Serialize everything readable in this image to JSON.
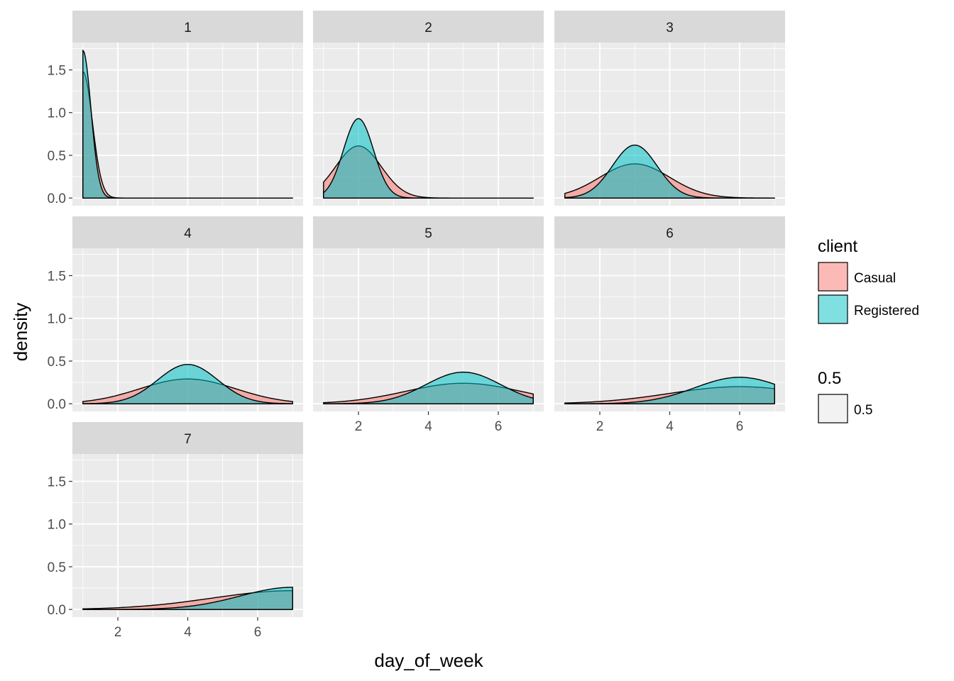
{
  "chart_data": {
    "type": "area",
    "subtype": "density-faceted",
    "xlabel": "day_of_week",
    "ylabel": "density",
    "xlim": [
      0.7,
      7.3
    ],
    "ylim": [
      -0.09,
      1.82
    ],
    "x_ticks": [
      2,
      4,
      6
    ],
    "y_ticks": [
      0.0,
      0.5,
      1.0,
      1.5
    ],
    "y_tick_labels": [
      "0.0",
      "0.5",
      "1.0",
      "1.5"
    ],
    "x_range": [
      1,
      7
    ],
    "grid": true,
    "legend_position": "right",
    "legend": {
      "fill_title": "client",
      "fill_entries": [
        {
          "name": "Casual",
          "color": "#F8766D"
        },
        {
          "name": "Registered",
          "color": "#00BFC4"
        }
      ],
      "alpha_title": "0.5",
      "alpha_entries": [
        {
          "name": "0.5"
        }
      ]
    },
    "colors": {
      "panel_bg": "#EBEBEB",
      "grid": "#FFFFFF",
      "strip_bg": "#D9D9D9",
      "casual": "#F8766D",
      "registered": "#00BFC4",
      "outline": "#000000"
    },
    "facets": [
      {
        "label": "1",
        "series": [
          {
            "name": "Casual",
            "mean": 1.0,
            "sd": 0.27,
            "peak": 1.48
          },
          {
            "name": "Registered",
            "mean": 1.0,
            "sd": 0.23,
            "peak": 1.73
          }
        ]
      },
      {
        "label": "2",
        "series": [
          {
            "name": "Casual",
            "mean": 2.0,
            "sd": 0.65,
            "peak": 0.61
          },
          {
            "name": "Registered",
            "mean": 2.0,
            "sd": 0.43,
            "peak": 0.93
          }
        ]
      },
      {
        "label": "3",
        "series": [
          {
            "name": "Casual",
            "mean": 3.0,
            "sd": 1.0,
            "peak": 0.4
          },
          {
            "name": "Registered",
            "mean": 3.0,
            "sd": 0.64,
            "peak": 0.62
          }
        ]
      },
      {
        "label": "4",
        "series": [
          {
            "name": "Casual",
            "mean": 4.0,
            "sd": 1.37,
            "peak": 0.29
          },
          {
            "name": "Registered",
            "mean": 4.0,
            "sd": 0.86,
            "peak": 0.46
          }
        ]
      },
      {
        "label": "5",
        "series": [
          {
            "name": "Casual",
            "mean": 5.0,
            "sd": 1.65,
            "peak": 0.24
          },
          {
            "name": "Registered",
            "mean": 5.0,
            "sd": 1.07,
            "peak": 0.37
          }
        ]
      },
      {
        "label": "6",
        "series": [
          {
            "name": "Casual",
            "mean": 6.0,
            "sd": 2.0,
            "peak": 0.2
          },
          {
            "name": "Registered",
            "mean": 6.0,
            "sd": 1.28,
            "peak": 0.31
          }
        ]
      },
      {
        "label": "7",
        "series": [
          {
            "name": "Casual",
            "mean": 7.0,
            "sd": 2.3,
            "peak": 0.22
          },
          {
            "name": "Registered",
            "mean": 7.0,
            "sd": 1.5,
            "peak": 0.26
          }
        ]
      }
    ]
  }
}
